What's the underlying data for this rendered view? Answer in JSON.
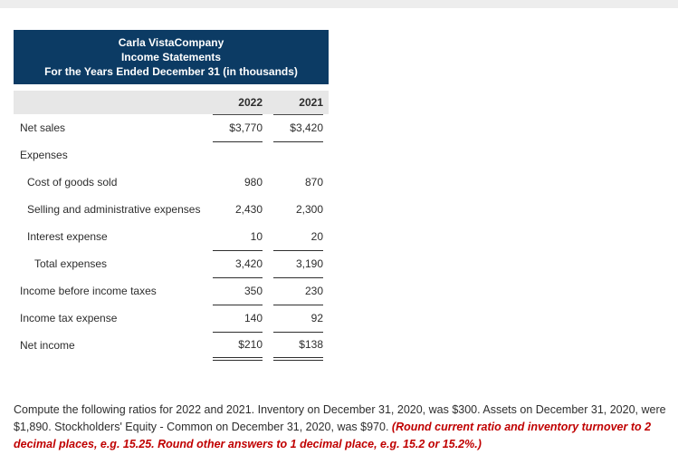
{
  "page": {
    "background": "#ffffff",
    "top_strip_color": "#ededed"
  },
  "statement": {
    "header": {
      "company": "Carla VistaCompany",
      "title": "Income Statements",
      "subtitle": "For the Years Ended December 31 (in thousands)",
      "bg_color": "#0c3b64",
      "text_color": "#ffffff"
    },
    "columns": [
      "2022",
      "2021"
    ],
    "rows": [
      {
        "label": "Net sales",
        "indent": 0,
        "v2022": "$3,770",
        "v2021": "$3,420",
        "underline": "single"
      },
      {
        "label": "Expenses",
        "indent": 0,
        "v2022": "",
        "v2021": "",
        "underline": "none"
      },
      {
        "label": "Cost of goods sold",
        "indent": 1,
        "v2022": "980",
        "v2021": "870",
        "underline": "none"
      },
      {
        "label": "Selling and administrative expenses",
        "indent": 1,
        "v2022": "2,430",
        "v2021": "2,300",
        "underline": "none"
      },
      {
        "label": "Interest expense",
        "indent": 1,
        "v2022": "10",
        "v2021": "20",
        "underline": "single"
      },
      {
        "label": "Total expenses",
        "indent": 2,
        "v2022": "3,420",
        "v2021": "3,190",
        "underline": "single"
      },
      {
        "label": "Income before income taxes",
        "indent": 0,
        "v2022": "350",
        "v2021": "230",
        "underline": "single"
      },
      {
        "label": "Income tax expense",
        "indent": 0,
        "v2022": "140",
        "v2021": "92",
        "underline": "single"
      },
      {
        "label": "Net income",
        "indent": 0,
        "v2022": "$210",
        "v2021": "$138",
        "underline": "double"
      }
    ]
  },
  "instructions": {
    "normal_text": "Compute the following ratios for 2022 and 2021. Inventory on December 31, 2020, was $300. Assets on December 31, 2020, were $1,890. Stockholders' Equity - Common on December 31, 2020, was $970. ",
    "emphasis_text": "(Round current ratio and inventory turnover to 2 decimal places, e.g. 15.25. Round other answers to 1 decimal place, e.g. 15.2 or 15.2%.)",
    "emphasis_color": "#c00000"
  }
}
